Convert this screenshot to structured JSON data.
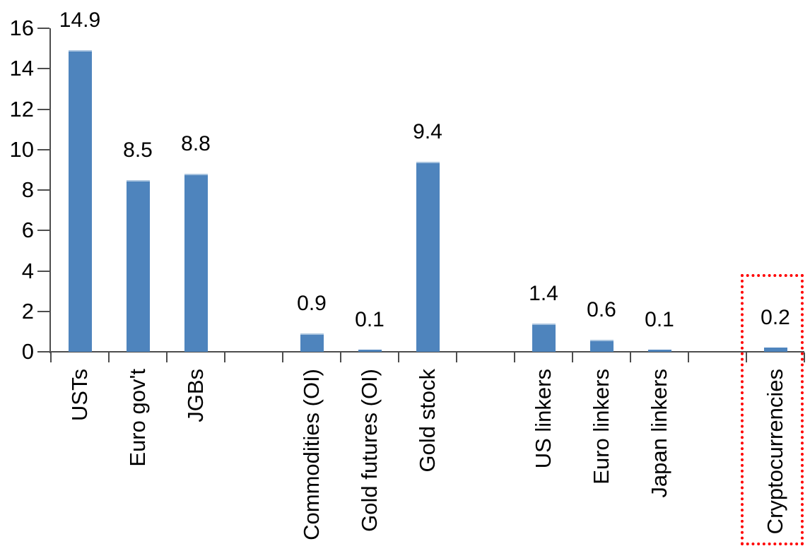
{
  "chart_data": {
    "type": "bar",
    "title": "",
    "xlabel": "",
    "ylabel": "",
    "legend": null,
    "grid": false,
    "categories": [
      "USTs",
      "Euro gov't",
      "JGBs",
      "Commodities (OI)",
      "Gold futures (OI)",
      "Gold stock",
      "US linkers",
      "Euro linkers",
      "Japan linkers",
      "Cryptocurrencies"
    ],
    "values": [
      14.9,
      8.5,
      8.8,
      0.9,
      0.1,
      9.4,
      1.4,
      0.6,
      0.1,
      0.2
    ],
    "items": [
      {
        "label": "USTs",
        "value": 14.9,
        "value_label": "14.9",
        "slot": 1,
        "highlighted": false
      },
      {
        "label": "Euro gov't",
        "value": 8.5,
        "value_label": "8.5",
        "slot": 2,
        "highlighted": false
      },
      {
        "label": "JGBs",
        "value": 8.8,
        "value_label": "8.8",
        "slot": 3,
        "highlighted": false
      },
      {
        "label": "Commodities (OI)",
        "value": 0.9,
        "value_label": "0.9",
        "slot": 5,
        "highlighted": false
      },
      {
        "label": "Gold futures (OI)",
        "value": 0.1,
        "value_label": "0.1",
        "slot": 6,
        "highlighted": false
      },
      {
        "label": "Gold stock",
        "value": 9.4,
        "value_label": "9.4",
        "slot": 7,
        "highlighted": false
      },
      {
        "label": "US linkers",
        "value": 1.4,
        "value_label": "1.4",
        "slot": 9,
        "highlighted": false
      },
      {
        "label": "Euro linkers",
        "value": 0.6,
        "value_label": "0.6",
        "slot": 10,
        "highlighted": false
      },
      {
        "label": "Japan linkers",
        "value": 0.1,
        "value_label": "0.1",
        "slot": 11,
        "highlighted": false
      },
      {
        "label": "Cryptocurrencies",
        "value": 0.2,
        "value_label": "0.2",
        "slot": 13,
        "highlighted": true
      }
    ],
    "y_axis": {
      "min": 0,
      "max": 16,
      "step": 2,
      "tick_labels": [
        "0",
        "2",
        "4",
        "6",
        "8",
        "10",
        "12",
        "14",
        "16"
      ]
    },
    "total_slots": 13,
    "colors": {
      "bar": "#4E84BD",
      "bar_top_edge": "#A9C4DF",
      "axis": "#4D4D4D",
      "text": "#000000",
      "highlight_box": "#FF0000",
      "background": "#FFFFFF"
    }
  }
}
